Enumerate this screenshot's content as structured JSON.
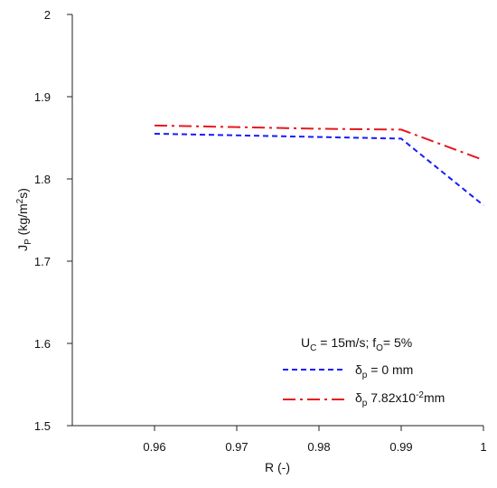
{
  "chart_data": {
    "type": "line",
    "xlabel": "R (-)",
    "ylabel": {
      "base": "J",
      "sub": "P",
      "unit_pre": " (kg/m",
      "sup": "2",
      "unit_post": "s)"
    },
    "xlim": [
      0.95,
      1.0
    ],
    "ylim": [
      1.5,
      2.0
    ],
    "x_ticks": [
      0.96,
      0.97,
      0.98,
      0.99,
      1
    ],
    "x_tick_labels": [
      "0.96",
      "0.97",
      "0.98",
      "0.99",
      "1"
    ],
    "y_ticks": [
      1.5,
      1.6,
      1.7,
      1.8,
      1.9,
      2.0
    ],
    "y_tick_labels": [
      "1.5",
      "1.6",
      "1.7",
      "1.8",
      "1.9",
      "2"
    ],
    "grid": false,
    "legend_placement": "bottom-right",
    "annotation": {
      "u": "U",
      "u_sub": "C",
      "u_val": " = 15m/s; f",
      "f_sub": "O",
      "f_val": "= 5%"
    },
    "series": [
      {
        "legend": {
          "sym": "δ",
          "sub": "p",
          "rest": " = 0 mm"
        },
        "color": "#1a1aff",
        "dash": "dashed",
        "x": [
          0.96,
          0.97,
          0.98,
          0.99,
          1.0
        ],
        "y": [
          1.855,
          1.853,
          1.851,
          1.849,
          1.768
        ]
      },
      {
        "legend": {
          "sym": "δ",
          "sub": "p",
          "rest": "  7.82x10",
          "sup": "-2",
          "rest2": "mm"
        },
        "color": "#e8171e",
        "dash": "dashdot",
        "x": [
          0.96,
          0.97,
          0.98,
          0.99,
          1.0
        ],
        "y": [
          1.865,
          1.863,
          1.861,
          1.86,
          1.823
        ]
      }
    ]
  }
}
